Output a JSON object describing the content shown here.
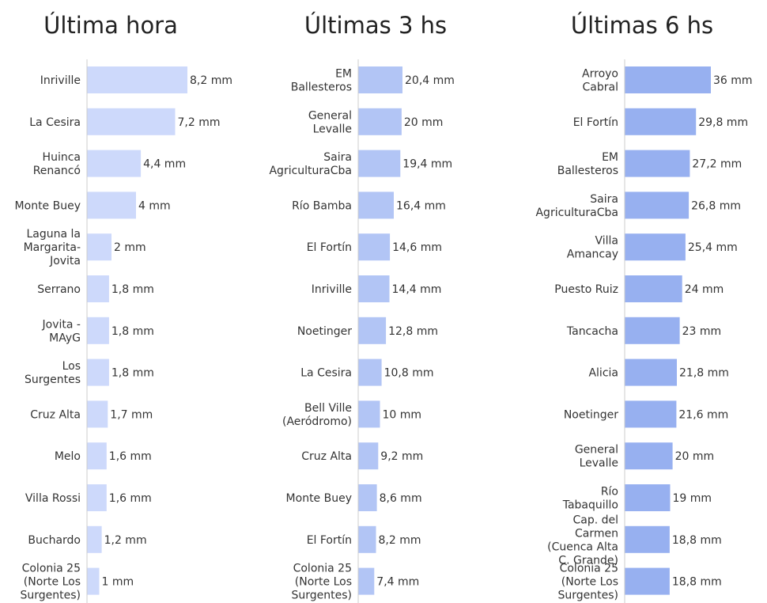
{
  "chart_data": [
    {
      "type": "bar",
      "orientation": "horizontal",
      "title": "Última hora",
      "color": "#cdd9fb",
      "unit": "mm",
      "categories": [
        "Inriville",
        "La Cesira",
        "Huinca\nRenancó",
        "Monte Buey",
        "Laguna la\nMargarita-\nJovita",
        "Serrano",
        "Jovita -\nMAyG",
        "Los\nSurgentes",
        "Cruz Alta",
        "Melo",
        "Villa Rossi",
        "Buchardo",
        "Colonia 25\n(Norte Los\nSurgentes)"
      ],
      "values": [
        8.2,
        7.2,
        4.4,
        4,
        2,
        1.8,
        1.8,
        1.8,
        1.7,
        1.6,
        1.6,
        1.2,
        1
      ],
      "value_labels": [
        "8,2 mm",
        "7,2 mm",
        "4,4 mm",
        "4 mm",
        "2 mm",
        "1,8 mm",
        "1,8 mm",
        "1,8 mm",
        "1,7 mm",
        "1,6 mm",
        "1,6 mm",
        "1,2 mm",
        "1 mm"
      ],
      "xlim": [
        0,
        8.2
      ]
    },
    {
      "type": "bar",
      "orientation": "horizontal",
      "title": "Últimas 3 hs",
      "color": "#b2c5f5",
      "unit": "mm",
      "categories": [
        "EM\nBallesteros",
        "General\nLevalle",
        "Saira\nAgriculturaCba",
        "Río Bamba",
        "El Fortín",
        "Inriville",
        "Noetinger",
        "La Cesira",
        "Bell Ville\n(Aeródromo)",
        "Cruz Alta",
        "Monte Buey",
        "El Fortín",
        "Colonia 25\n(Norte Los\nSurgentes)"
      ],
      "values": [
        20.4,
        20,
        19.4,
        16.4,
        14.6,
        14.4,
        12.8,
        10.8,
        10,
        9.2,
        8.6,
        8.2,
        7.4
      ],
      "value_labels": [
        "20,4 mm",
        "20 mm",
        "19,4 mm",
        "16,4 mm",
        "14,6 mm",
        "14,4 mm",
        "12,8 mm",
        "10,8 mm",
        "10 mm",
        "9,2 mm",
        "8,6 mm",
        "8,2 mm",
        "7,4 mm"
      ],
      "xlim": [
        0,
        20.4
      ]
    },
    {
      "type": "bar",
      "orientation": "horizontal",
      "title": "Últimas 6 hs",
      "color": "#97b0f0",
      "unit": "mm",
      "categories": [
        "Arroyo\nCabral",
        "El Fortín",
        "EM\nBallesteros",
        "Saira\nAgriculturaCba",
        "Villa\nAmancay",
        "Puesto Ruiz",
        "Tancacha",
        "Alicia",
        "Noetinger",
        "General\nLevalle",
        "Río\nTabaquillo",
        "Cap. del\nCarmen\n(Cuenca Alta\nC. Grande)",
        "Colonia 25\n(Norte Los\nSurgentes)"
      ],
      "values": [
        36,
        29.8,
        27.2,
        26.8,
        25.4,
        24,
        23,
        21.8,
        21.6,
        20,
        19,
        18.8,
        18.8
      ],
      "value_labels": [
        "36 mm",
        "29,8 mm",
        "27,2 mm",
        "26,8 mm",
        "25,4 mm",
        "24 mm",
        "23 mm",
        "21,8 mm",
        "21,6 mm",
        "20 mm",
        "19 mm",
        "18,8 mm",
        "18,8 mm"
      ],
      "xlim": [
        0,
        36
      ]
    }
  ]
}
